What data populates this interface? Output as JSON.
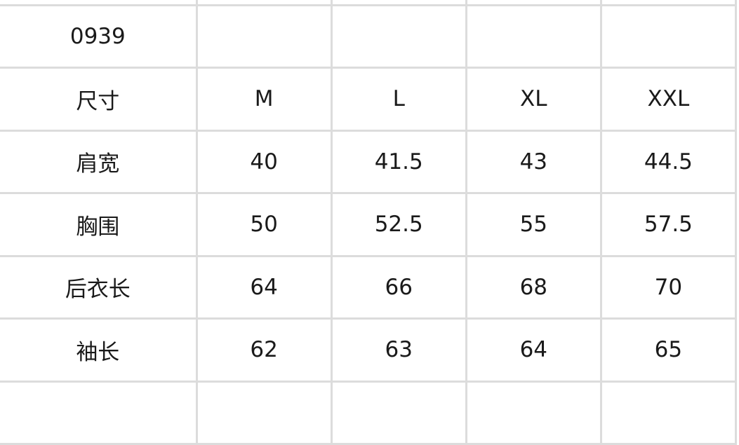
{
  "table": {
    "rows": [
      [
        "",
        "",
        "",
        "",
        ""
      ],
      [
        "0939",
        "",
        "",
        "",
        ""
      ],
      [
        "尺寸",
        "M",
        "L",
        "XL",
        "XXL"
      ],
      [
        "肩宽",
        "40",
        "41.5",
        "43",
        "44.5"
      ],
      [
        "胸围",
        "50",
        "52.5",
        "55",
        "57.5"
      ],
      [
        "后衣长",
        "64",
        "66",
        "68",
        "70"
      ],
      [
        "袖长",
        "62",
        "63",
        "64",
        "65"
      ],
      [
        "",
        "",
        "",
        "",
        ""
      ]
    ]
  }
}
